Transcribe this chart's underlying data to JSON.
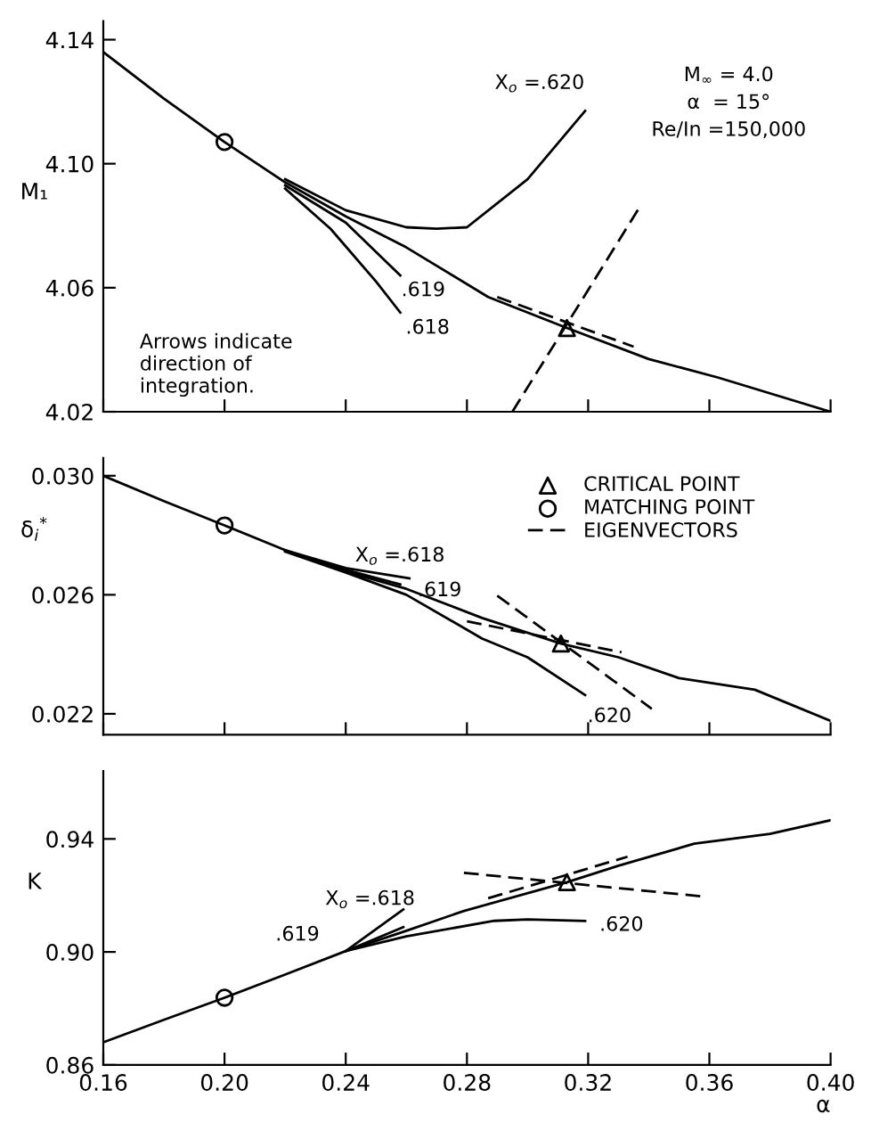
{
  "chart_data": [
    {
      "type": "line",
      "ylabel": "M₁",
      "xlim": [
        0.16,
        0.4
      ],
      "ylim": [
        4.02,
        4.146
      ],
      "xticks": [
        0.16,
        0.2,
        0.24,
        0.28,
        0.32,
        0.36,
        0.4
      ],
      "yticks": [
        {
          "value": 4.02,
          "label": "4.02"
        },
        {
          "value": 4.06,
          "label": "4.06"
        },
        {
          "value": 4.1,
          "label": "4.10"
        },
        {
          "value": 4.14,
          "label": "4.14"
        }
      ],
      "tick_labels": "y",
      "grid": false,
      "legend": false,
      "series": [
        {
          "color": "#000000",
          "line_style": "solid",
          "x": [
            0.16,
            0.18,
            0.2,
            0.22,
            0.24,
            0.26,
            0.287,
            0.313,
            0.34,
            0.363,
            0.4
          ],
          "values": [
            4.136,
            4.121,
            4.107,
            4.094,
            4.083,
            4.073,
            4.057,
            4.047,
            4.037,
            4.031,
            4.02
          ]
        },
        {
          "color": "#000000",
          "line_style": "solid",
          "x": [
            0.22,
            0.24,
            0.26,
            0.27,
            0.28,
            0.3,
            0.319
          ],
          "values": [
            4.095,
            4.085,
            4.0795,
            4.079,
            4.0795,
            4.095,
            4.117
          ]
        },
        {
          "color": "#000000",
          "line_style": "solid",
          "x": [
            0.22,
            0.24,
            0.258
          ],
          "values": [
            4.093,
            4.081,
            4.064
          ]
        },
        {
          "color": "#000000",
          "line_style": "solid",
          "x": [
            0.22,
            0.235,
            0.25,
            0.258
          ],
          "values": [
            4.092,
            4.079,
            4.062,
            4.052
          ]
        },
        {
          "color": "#000000",
          "line_style": "dashed",
          "x": [
            0.295,
            0.337
          ],
          "values": [
            4.02,
            4.086
          ]
        },
        {
          "color": "#000000",
          "line_style": "dashed",
          "x": [
            0.29,
            0.335
          ],
          "values": [
            4.057,
            4.041
          ]
        },
        {
          "type": "scatter",
          "color": "#000000",
          "marker": "circle",
          "x": [
            0.2
          ],
          "values": [
            4.107
          ]
        },
        {
          "type": "scatter",
          "color": "#000000",
          "marker": "triangle",
          "x": [
            0.313
          ],
          "values": [
            4.047
          ]
        }
      ],
      "annotations": [
        "X$_{o}$ =.620",
        ".619",
        ".618",
        "M$_{∞}$ = 4.0",
        "α  = 15°",
        "Re/In =150,000",
        "Arrows indicate\ndirection of\nintegration."
      ]
    },
    {
      "type": "line",
      "ylabel": "δ$_{i}$$^{*}$",
      "xlim": [
        0.16,
        0.4
      ],
      "ylim": [
        0.0213,
        0.0306
      ],
      "xticks": [
        0.16,
        0.2,
        0.24,
        0.28,
        0.32,
        0.36,
        0.4
      ],
      "yticks": [
        {
          "value": 0.022,
          "label": "0.022"
        },
        {
          "value": 0.026,
          "label": "0.026"
        },
        {
          "value": 0.03,
          "label": "0.030"
        }
      ],
      "tick_labels": "y",
      "grid": false,
      "legend": "top right",
      "series": [
        {
          "color": "#000000",
          "line_style": "solid",
          "x": [
            0.16,
            0.18,
            0.2,
            0.22,
            0.24,
            0.26,
            0.285,
            0.311,
            0.33,
            0.35,
            0.375,
            0.4
          ],
          "values": [
            0.03,
            0.02915,
            0.02833,
            0.0275,
            0.02678,
            0.0262,
            0.02522,
            0.02436,
            0.0239,
            0.0232,
            0.02281,
            0.02176
          ]
        },
        {
          "color": "#000000",
          "line_style": "solid",
          "x": [
            0.22,
            0.24,
            0.261
          ],
          "values": [
            0.0275,
            0.0269,
            0.02655
          ]
        },
        {
          "color": "#000000",
          "line_style": "solid",
          "x": [
            0.22,
            0.24,
            0.258
          ],
          "values": [
            0.02748,
            0.02684,
            0.02635
          ]
        },
        {
          "color": "#000000",
          "line_style": "solid",
          "x": [
            0.22,
            0.24,
            0.26,
            0.285,
            0.3,
            0.319
          ],
          "values": [
            0.02745,
            0.02675,
            0.026,
            0.02453,
            0.0239,
            0.02263
          ]
        },
        {
          "name": "EIGENVECTORS",
          "color": "#000000",
          "line_style": "dashed",
          "x": [
            0.29,
            0.341
          ],
          "values": [
            0.02597,
            0.02217
          ]
        },
        {
          "color": "#000000",
          "line_style": "dashed",
          "x": [
            0.28,
            0.331
          ],
          "values": [
            0.02511,
            0.02407
          ]
        },
        {
          "type": "scatter",
          "name": "MATCHING POINT",
          "color": "#000000",
          "marker": "circle",
          "x": [
            0.2
          ],
          "values": [
            0.02833
          ]
        },
        {
          "type": "scatter",
          "name": "CRITICAL POINT",
          "color": "#000000",
          "marker": "triangle",
          "x": [
            0.311
          ],
          "values": [
            0.02436
          ]
        }
      ],
      "annotations": [
        "X$_{o}$ =.618",
        ".619",
        ".620"
      ]
    },
    {
      "type": "line",
      "ylabel": "K",
      "xlabel": "α",
      "xlim": [
        0.16,
        0.4
      ],
      "ylim": [
        0.86,
        0.964
      ],
      "xticks": [
        {
          "value": 0.16,
          "label": "0.16"
        },
        {
          "value": 0.2,
          "label": "0.20"
        },
        {
          "value": 0.24,
          "label": "0.24"
        },
        {
          "value": 0.28,
          "label": "0.28"
        },
        {
          "value": 0.32,
          "label": "0.32"
        },
        {
          "value": 0.36,
          "label": "0.36"
        },
        {
          "value": 0.4,
          "label": "0.40"
        }
      ],
      "yticks": [
        {
          "value": 0.86,
          "label": "0.86"
        },
        {
          "value": 0.9,
          "label": "0.90"
        },
        {
          "value": 0.94,
          "label": "0.94"
        }
      ],
      "grid": false,
      "legend": false,
      "series": [
        {
          "color": "#000000",
          "line_style": "solid",
          "x": [
            0.16,
            0.18,
            0.2,
            0.22,
            0.24,
            0.26,
            0.279,
            0.313,
            0.33,
            0.355,
            0.38,
            0.4
          ],
          "values": [
            0.868,
            0.876,
            0.8838,
            0.892,
            0.9003,
            0.9075,
            0.9145,
            0.9247,
            0.9305,
            0.9383,
            0.9418,
            0.9466
          ]
        },
        {
          "color": "#000000",
          "line_style": "solid",
          "x": [
            0.24,
            0.259
          ],
          "values": [
            0.9003,
            0.915
          ]
        },
        {
          "color": "#000000",
          "line_style": "solid",
          "x": [
            0.24,
            0.259
          ],
          "values": [
            0.9003,
            0.9088
          ]
        },
        {
          "color": "#000000",
          "line_style": "solid",
          "x": [
            0.24,
            0.26,
            0.289,
            0.3,
            0.319
          ],
          "values": [
            0.9003,
            0.9055,
            0.911,
            0.9115,
            0.911
          ]
        },
        {
          "color": "#000000",
          "line_style": "dashed",
          "x": [
            0.279,
            0.358
          ],
          "values": [
            0.928,
            0.9196
          ]
        },
        {
          "color": "#000000",
          "line_style": "dashed",
          "x": [
            0.287,
            0.333
          ],
          "values": [
            0.919,
            0.9337
          ]
        },
        {
          "type": "scatter",
          "color": "#000000",
          "marker": "circle",
          "x": [
            0.2
          ],
          "values": [
            0.8838
          ]
        },
        {
          "type": "scatter",
          "color": "#000000",
          "marker": "triangle",
          "x": [
            0.313
          ],
          "values": [
            0.9247
          ]
        }
      ],
      "annotations": [
        "X$_{o}$ =.618",
        ".619",
        ".620"
      ]
    }
  ]
}
